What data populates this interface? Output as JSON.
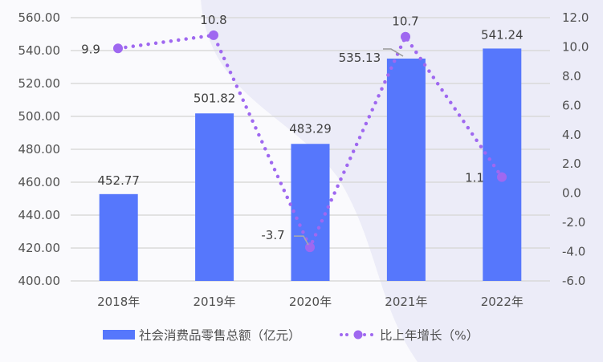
{
  "chart_data": {
    "type": "bar+line",
    "title": "",
    "categories": [
      "2018年",
      "2019年",
      "2020年",
      "2021年",
      "2022年"
    ],
    "series": [
      {
        "name": "社会消费品零售总额（亿元）",
        "type": "bar",
        "axis": "left",
        "color": "#5677fc",
        "values": [
          452.77,
          501.82,
          483.29,
          535.13,
          541.24
        ],
        "labels": [
          "452.77",
          "501.82",
          "483.29",
          "535.13",
          "541.24"
        ]
      },
      {
        "name": "比上年增长（%）",
        "type": "line",
        "style": "dotted",
        "axis": "right",
        "color": "#9f68f0",
        "values": [
          9.9,
          10.8,
          -3.7,
          10.7,
          1.1
        ],
        "labels": [
          "9.9",
          "10.8",
          "-3.7",
          "10.7",
          "1.1"
        ]
      }
    ],
    "left_axis": {
      "ylim": [
        400,
        560
      ],
      "ticks": [
        "560.00",
        "540.00",
        "520.00",
        "500.00",
        "480.00",
        "460.00",
        "440.00",
        "420.00",
        "400.00"
      ]
    },
    "right_axis": {
      "ylim": [
        -6,
        12
      ],
      "ticks": [
        "12.0",
        "10.0",
        "8.0",
        "6.0",
        "4.0",
        "2.0",
        "0.0",
        "-2.0",
        "-4.0",
        "-6.0"
      ]
    },
    "grid": true,
    "legend_position": "bottom"
  },
  "legend": {
    "bar_label": "社会消费品零售总额（亿元）",
    "line_label": "比上年增长（%）"
  }
}
